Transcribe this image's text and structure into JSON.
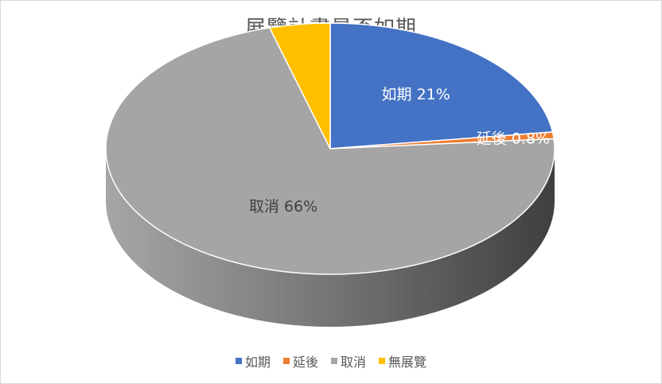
{
  "chart_data": {
    "type": "pie",
    "title": "展覽計畫是否如期",
    "categories": [
      "如期",
      "延後",
      "取消",
      "無展覽"
    ],
    "values": [
      21,
      0.8,
      66,
      4
    ],
    "data_labels": [
      "如期 21%",
      "延後 0.8%",
      "取消 66%",
      ""
    ],
    "colors": [
      "#4472C4",
      "#ED7D31",
      "#A5A5A5",
      "#FFC000"
    ],
    "legend_position": "bottom",
    "style": "3d"
  }
}
